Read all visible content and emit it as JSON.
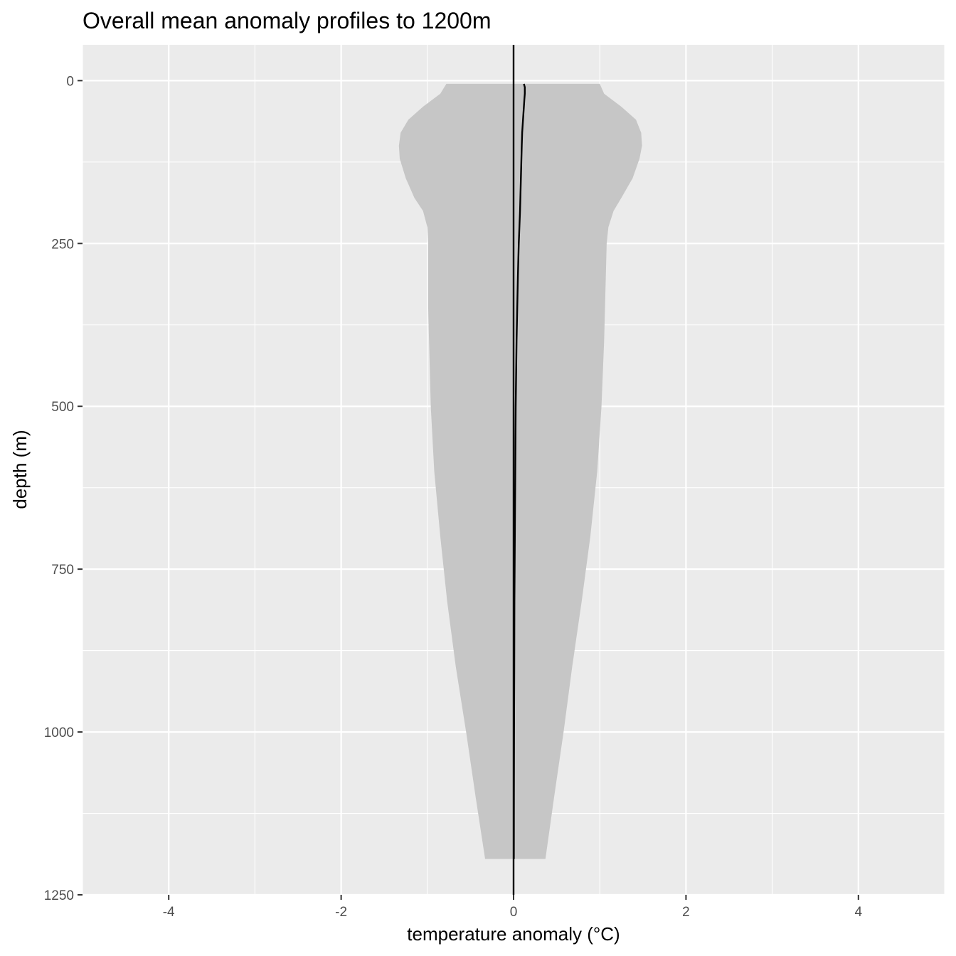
{
  "chart_data": {
    "type": "area",
    "title": "Overall mean anomaly profiles to 1200m",
    "xlabel": "temperature anomaly (°C)",
    "ylabel": "depth (m)",
    "xlim": [
      -5,
      5
    ],
    "ylim": [
      1250,
      -55
    ],
    "y_reversed": true,
    "x_ticks": [
      -4,
      -2,
      0,
      2,
      4
    ],
    "x_tick_labels": [
      "-4",
      "-2",
      "0",
      "2",
      "4"
    ],
    "y_ticks": [
      0,
      250,
      500,
      750,
      1000,
      1250
    ],
    "y_tick_labels": [
      "0",
      "250",
      "500",
      "750",
      "1000",
      "1250"
    ],
    "grid": true,
    "legend": "none",
    "vline_x": 0,
    "colors": {
      "panel": "#ebebeb",
      "grid": "#ffffff",
      "ribbon": "#c6c6c6",
      "line": "#000000"
    },
    "series": [
      {
        "kind": "ribbon",
        "depth": [
          5,
          20,
          40,
          60,
          80,
          100,
          120,
          150,
          180,
          200,
          225,
          250,
          300,
          350,
          400,
          500,
          600,
          700,
          800,
          900,
          1000,
          1100,
          1195
        ],
        "lower": [
          -0.78,
          -0.85,
          -1.05,
          -1.22,
          -1.31,
          -1.33,
          -1.32,
          -1.25,
          -1.15,
          -1.05,
          -1.0,
          -0.99,
          -0.99,
          -0.99,
          -0.98,
          -0.96,
          -0.92,
          -0.85,
          -0.77,
          -0.67,
          -0.55,
          -0.44,
          -0.33
        ],
        "upper": [
          1.0,
          1.05,
          1.25,
          1.42,
          1.48,
          1.49,
          1.46,
          1.38,
          1.25,
          1.16,
          1.1,
          1.08,
          1.07,
          1.06,
          1.05,
          1.02,
          0.97,
          0.89,
          0.79,
          0.68,
          0.58,
          0.47,
          0.37
        ]
      },
      {
        "kind": "line",
        "depth": [
          5,
          10,
          20,
          30,
          40,
          50,
          60,
          80,
          100,
          150,
          200,
          250,
          300,
          400,
          500,
          600,
          700,
          800,
          900,
          1000,
          1100,
          1195
        ],
        "values": [
          0.12,
          0.13,
          0.13,
          0.125,
          0.12,
          0.115,
          0.11,
          0.1,
          0.095,
          0.085,
          0.075,
          0.06,
          0.05,
          0.035,
          0.025,
          0.02,
          0.015,
          0.01,
          0.008,
          0.006,
          0.004,
          0.003
        ]
      }
    ]
  }
}
